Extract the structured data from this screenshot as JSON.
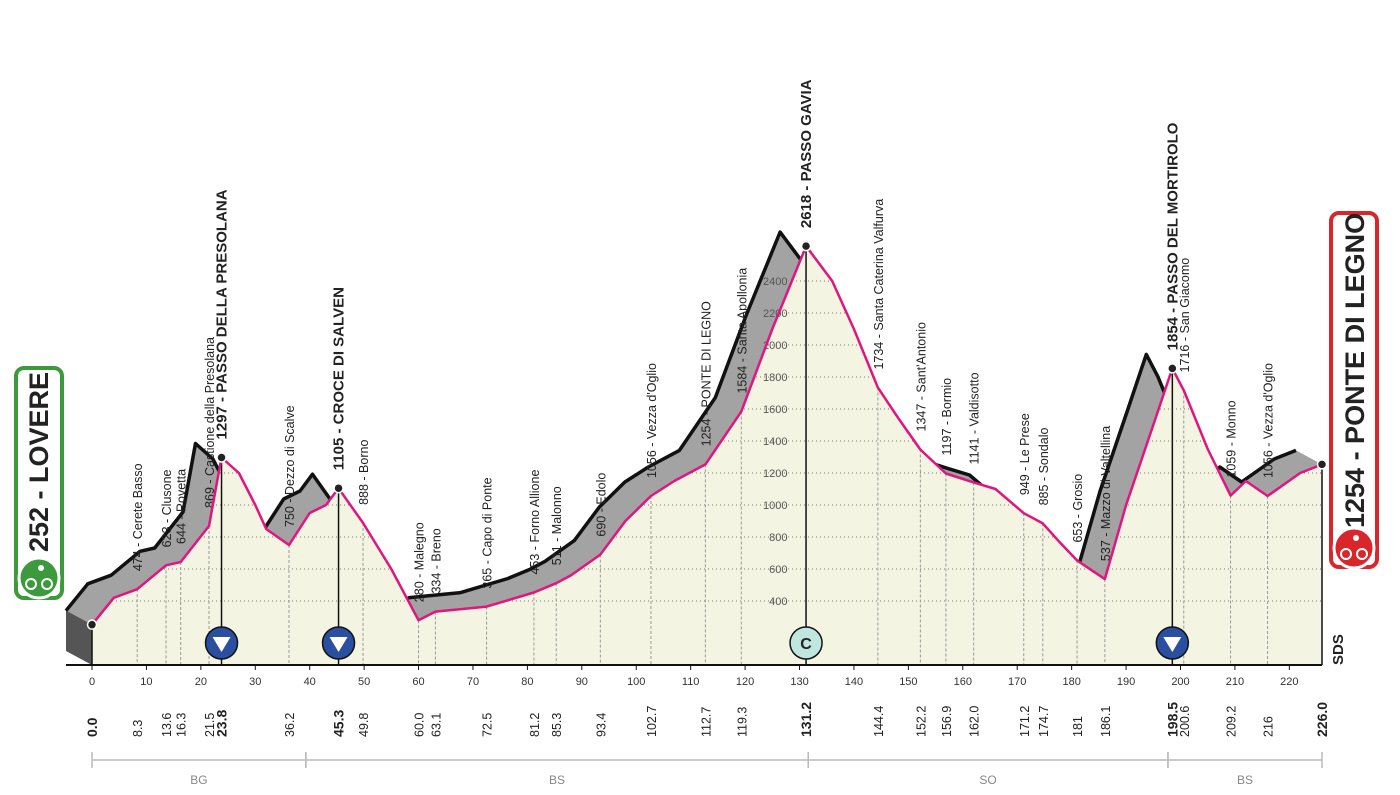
{
  "chart_data": {
    "type": "area",
    "start": "252 - LOVERE",
    "finish": "1254 - PONTE DI LEGNO",
    "logo": "SDS",
    "color": "#e0157f",
    "fill": "#f3f5e2",
    "shadow": "#a3a3a3",
    "grid": true,
    "xlim": [
      0,
      226
    ],
    "ylim": [
      0,
      2700
    ],
    "xticks": [
      0,
      10,
      20,
      30,
      40,
      50,
      60,
      70,
      80,
      90,
      100,
      110,
      120,
      130,
      140,
      150,
      160,
      170,
      180,
      190,
      200,
      210,
      220
    ],
    "yticks": [
      400,
      600,
      800,
      1000,
      1200,
      1400,
      1600,
      1800,
      2000,
      2200,
      2400
    ],
    "x": [
      0,
      4,
      8.3,
      13.6,
      16.3,
      21.5,
      23.8,
      27,
      30,
      32,
      36.2,
      40,
      43,
      45.3,
      49.8,
      55,
      60,
      63.1,
      72.5,
      81.2,
      85.3,
      88,
      93.4,
      98,
      102.7,
      107,
      112.7,
      119.3,
      125,
      131.2,
      136,
      140,
      144.4,
      148,
      152.2,
      156.9,
      162,
      166,
      171.2,
      174.7,
      178,
      181,
      186.1,
      190,
      195,
      198.5,
      200.6,
      205,
      209.2,
      212,
      216,
      222,
      226
    ],
    "values": [
      252,
      420,
      474,
      623,
      644,
      869,
      1297,
      1200,
      1000,
      850,
      750,
      950,
      1000,
      1105,
      888,
      600,
      280,
      334,
      365,
      453,
      511,
      560,
      690,
      900,
      1056,
      1150,
      1254,
      1584,
      2100,
      2618,
      2400,
      2100,
      1734,
      1550,
      1347,
      1197,
      1141,
      1100,
      949,
      885,
      760,
      653,
      537,
      1000,
      1500,
      1854,
      1716,
      1350,
      1059,
      1150,
      1056,
      1200,
      1254
    ],
    "waypoints": [
      {
        "km": {
          "value": 0,
          "label": "0.0"
        },
        "elevation": 252,
        "bold": true
      },
      {
        "km": 8.3,
        "elevation": 474,
        "label": "474 - Cerete Basso"
      },
      {
        "km": 13.6,
        "elevation": 623,
        "label": "623 - Clusone"
      },
      {
        "km": 16.3,
        "elevation": 644,
        "label": "644 - Rovetta"
      },
      {
        "km": 21.5,
        "elevation": 869,
        "label": "869 - Castione della Presolana"
      },
      {
        "km": 23.8,
        "elevation": 1297,
        "label": "1297 - PASSO DELLA PRESOLANA",
        "bold": true,
        "icon": "triangle"
      },
      {
        "km": 36.2,
        "elevation": 750,
        "label": "750 - Dezzo di Scalve"
      },
      {
        "km": 45.3,
        "elevation": 1105,
        "label": "1105 - CROCE DI SALVEN",
        "bold": true,
        "icon": "triangle"
      },
      {
        "km": 49.8,
        "elevation": 888,
        "label": "888 - Borno"
      },
      {
        "km": {
          "value": 60,
          "label": "60.0"
        },
        "elevation": 280,
        "label": "280 - Malegno"
      },
      {
        "km": 63.1,
        "elevation": 334,
        "label": "334 - Breno"
      },
      {
        "km": 72.5,
        "elevation": 365,
        "label": "365 - Capo di Ponte"
      },
      {
        "km": 81.2,
        "elevation": 453,
        "label": "453 - Forno Allione"
      },
      {
        "km": 85.3,
        "elevation": 511,
        "label": "511 - Malonno"
      },
      {
        "km": 93.4,
        "elevation": 690,
        "label": "690 - Edolo"
      },
      {
        "km": 102.7,
        "elevation": 1056,
        "label": "1056 - Vezza d'Oglio"
      },
      {
        "km": 112.7,
        "elevation": 1254,
        "label": "1254 - PONTE DI LEGNO"
      },
      {
        "km": 119.3,
        "elevation": 1584,
        "label": "1584 - Santa Apollonia"
      },
      {
        "km": 131.2,
        "elevation": 2618,
        "label": "2618 - PASSO GAVIA",
        "bold": true,
        "icon": "C"
      },
      {
        "km": 144.4,
        "elevation": 1734,
        "label": "1734 - Santa Caterina Valfurva"
      },
      {
        "km": 152.2,
        "elevation": 1347,
        "label": "1347 - Sant'Antonio"
      },
      {
        "km": 156.9,
        "elevation": 1197,
        "label": "1197 - Bormio"
      },
      {
        "km": {
          "value": 162,
          "label": "162.0"
        },
        "elevation": 1141,
        "label": "1141 - Valdisotto"
      },
      {
        "km": 171.2,
        "elevation": 949,
        "label": "949 - Le Prese"
      },
      {
        "km": 174.7,
        "elevation": 885,
        "label": "885 - Sondalo"
      },
      {
        "km": 181,
        "elevation": 653,
        "label": "653 - Grosio",
        "kmlabel": "181.0"
      },
      {
        "km": 186.1,
        "elevation": 537,
        "label": "537 - Mazzo di Valtellina"
      },
      {
        "km": 198.5,
        "elevation": 1854,
        "label": "1854 - PASSO DEL MORTIROLO",
        "bold": true,
        "icon": "triangle"
      },
      {
        "km": 200.6,
        "elevation": 1716,
        "label": "1716 - San Giacomo"
      },
      {
        "km": 209.2,
        "elevation": 1059,
        "label": "1059 - Monno"
      },
      {
        "km": 216,
        "elevation": 1056,
        "label": "1056 - Vezza d'Oglio",
        "kmlabel": "216.0"
      },
      {
        "km": {
          "value": 226,
          "label": "226.0"
        },
        "elevation": 1254,
        "bold": true
      }
    ],
    "sectors": [
      {
        "label": "BG",
        "from": 0,
        "to": 39.3
      },
      {
        "label": "BS",
        "from": 39.3,
        "to": 131.6
      },
      {
        "label": "SO",
        "from": 131.6,
        "to": 197.7
      },
      {
        "label": "BS",
        "from": 197.7,
        "to": 226
      }
    ]
  }
}
